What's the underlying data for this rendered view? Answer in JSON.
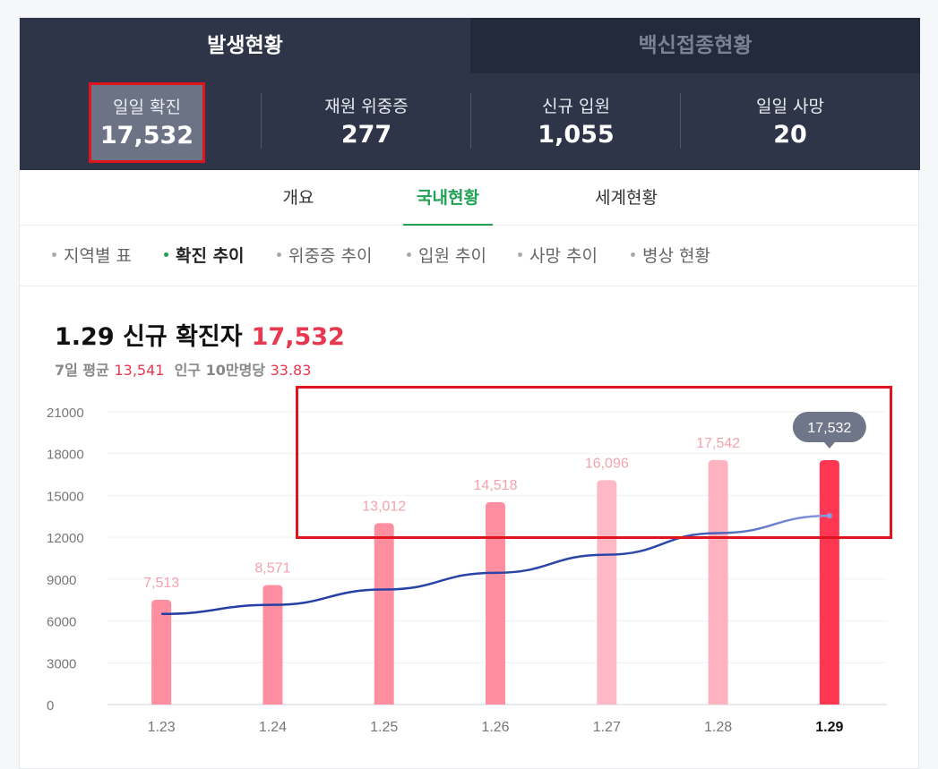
{
  "main_tabs": [
    "발생현황",
    "백신접종현황"
  ],
  "stats": [
    {
      "label": "일일 확진",
      "value": "17,532"
    },
    {
      "label": "재원 위중증",
      "value": "277"
    },
    {
      "label": "신규 입원",
      "value": "1,055"
    },
    {
      "label": "일일 사망",
      "value": "20"
    }
  ],
  "sub_tabs": [
    "개요",
    "국내현황",
    "세계현황"
  ],
  "chips": [
    "지역별 표",
    "확진 추이",
    "위중증 추이",
    "입원 추이",
    "사망 추이",
    "병상 현황"
  ],
  "chart_header": {
    "title": "1.29 신규 확진자",
    "value": "17,532",
    "avg_label": "7일 평균",
    "avg_value": "13,541",
    "per_label": "인구 10만명당",
    "per_value": "33.83"
  },
  "colors": {
    "accent": "#20a154",
    "highlight": "#e8384f",
    "bar": "#ff8fa0",
    "last_bar": "#ff3752",
    "line": "#233ea3",
    "header_bg": "#2e3548"
  },
  "chart_data": {
    "type": "bar",
    "categories": [
      "1.23",
      "1.24",
      "1.25",
      "1.26",
      "1.27",
      "1.28",
      "1.29"
    ],
    "series": [
      {
        "values": [
          7513,
          8571,
          13012,
          14518,
          16096,
          17542,
          17532
        ]
      },
      {
        "values": [
          6500,
          7150,
          8250,
          9450,
          10750,
          12300,
          13541
        ]
      }
    ],
    "bar_labels": [
      "7,513",
      "8,571",
      "13,012",
      "14,518",
      "16,096",
      "17,542",
      "17,532"
    ],
    "yticks": [
      "21000",
      "18000",
      "15000",
      "12000",
      "9000",
      "6000",
      "3000",
      "0"
    ],
    "ylim": [
      0,
      21000
    ],
    "grid": true,
    "tooltip": "17,532"
  }
}
